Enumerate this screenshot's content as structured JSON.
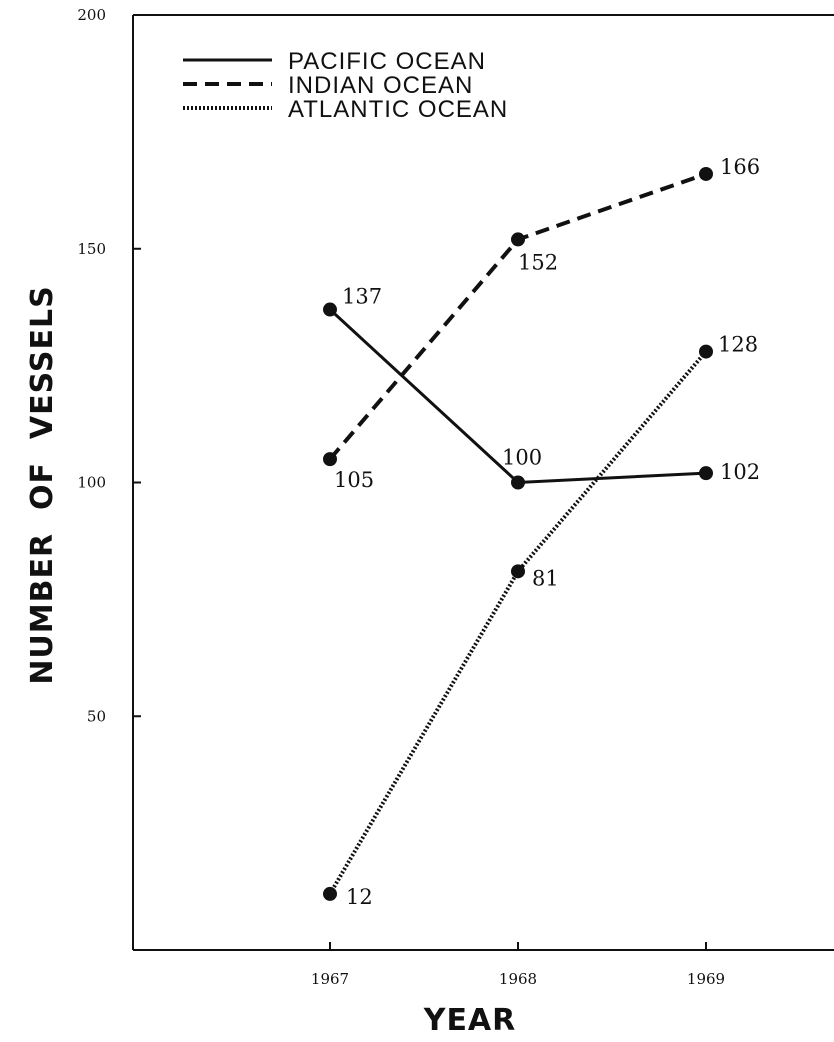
{
  "chart_data": {
    "type": "line",
    "xlabel": "YEAR",
    "ylabel": "NUMBER  OF  VESSELS",
    "categories": [
      "1967",
      "1968",
      "1969"
    ],
    "ylim": [
      0,
      200
    ],
    "yticks": [
      50,
      100,
      150,
      200
    ],
    "grid": false,
    "legend_position": "top-left",
    "series": [
      {
        "name": "PACIFIC  OCEAN",
        "style": "solid",
        "values": [
          137,
          100,
          102
        ]
      },
      {
        "name": "INDIAN  OCEAN",
        "style": "dashed",
        "values": [
          105,
          152,
          166
        ]
      },
      {
        "name": "ATLANTIC  OCEAN",
        "style": "dotted",
        "values": [
          12,
          81,
          128
        ]
      }
    ],
    "colors": {
      "line": "#111111",
      "background": "#ffffff"
    }
  }
}
